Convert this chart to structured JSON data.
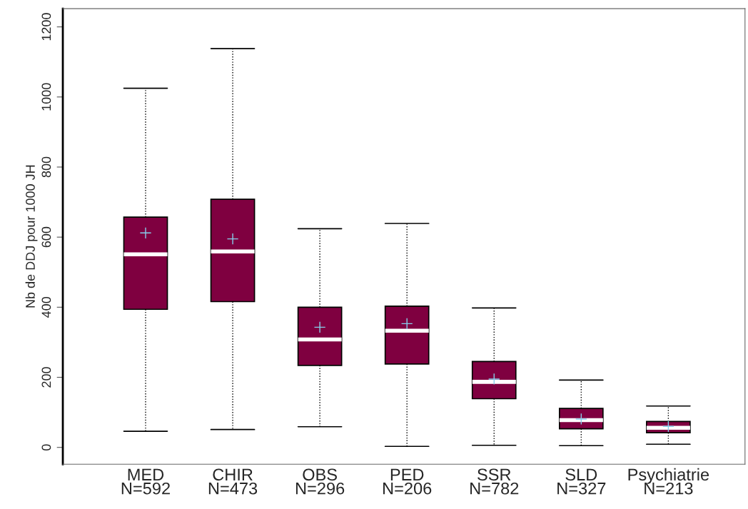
{
  "chart_data": {
    "type": "box",
    "ylabel": "Nb de DDJ pour 1000 JH",
    "categories": [
      "MED\nN=592",
      "CHIR\nN=473",
      "OBS\nN=296",
      "PED\nN=206",
      "SSR\nN=782",
      "SLD\nN=327",
      "Psychiatrie\nN=213"
    ],
    "boxes": [
      {
        "low": 46,
        "q1": 394,
        "median": 551,
        "q3": 657,
        "high": 1025,
        "mean": 612
      },
      {
        "low": 51,
        "q1": 416,
        "median": 559,
        "q3": 708,
        "high": 1138,
        "mean": 595
      },
      {
        "low": 59,
        "q1": 234,
        "median": 308,
        "q3": 400,
        "high": 624,
        "mean": 343
      },
      {
        "low": 3,
        "q1": 238,
        "median": 333,
        "q3": 403,
        "high": 639,
        "mean": 353
      },
      {
        "low": 6,
        "q1": 139,
        "median": 187,
        "q3": 245,
        "high": 398,
        "mean": 195
      },
      {
        "low": 5,
        "q1": 53,
        "median": 78,
        "q3": 111,
        "high": 192,
        "mean": 81
      },
      {
        "low": 9,
        "q1": 42,
        "median": 56,
        "q3": 74,
        "high": 118,
        "mean": 60
      }
    ],
    "color": "#7f0040",
    "ylim": [
      -48,
      1252
    ],
    "yticks": [
      0,
      200,
      400,
      600,
      800,
      1000,
      1200
    ],
    "grid": false,
    "legend": false,
    "marker": "cross"
  }
}
